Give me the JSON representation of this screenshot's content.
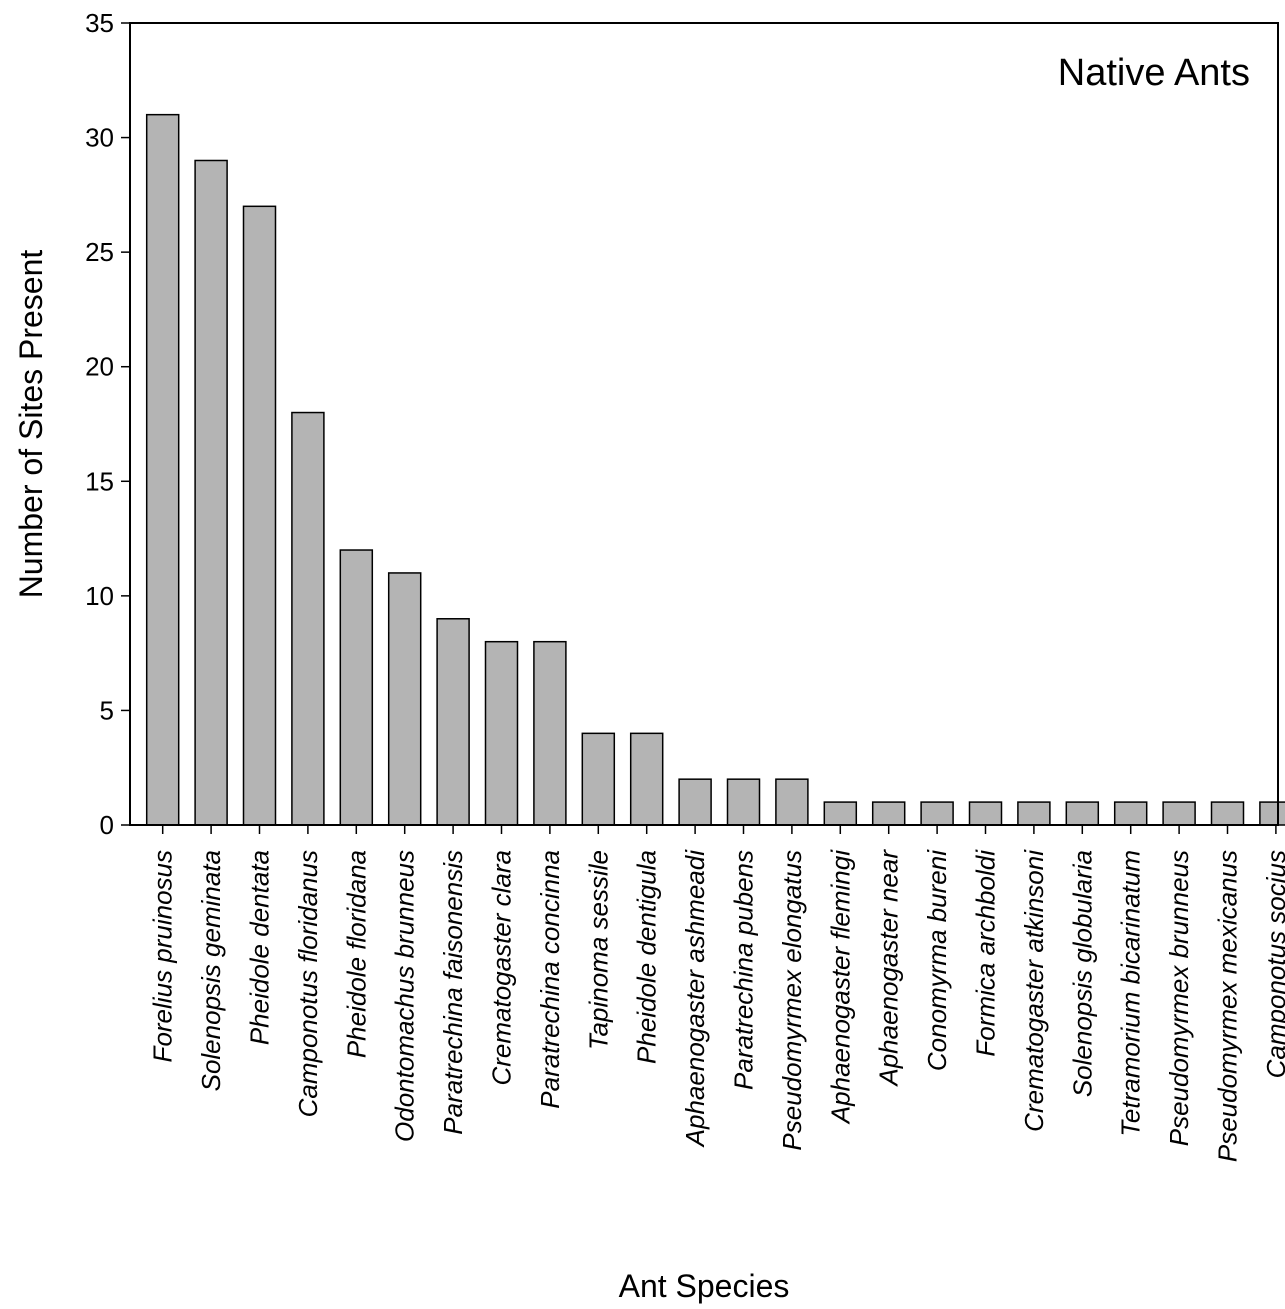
{
  "chart_data": {
    "type": "bar",
    "annotation": "Native Ants",
    "xlabel": "Ant Species",
    "ylabel": "Number of Sites Present",
    "ylim": [
      0,
      35
    ],
    "yticks": [
      0,
      5,
      10,
      15,
      20,
      25,
      30,
      35
    ],
    "grid": false,
    "categories": [
      "Forelius pruinosus",
      "Solenopsis geminata",
      "Pheidole dentata",
      "Camponotus floridanus",
      "Pheidole floridana",
      "Odontomachus brunneus",
      "Paratrechina faisonensis",
      "Crematogaster clara",
      "Paratrechina concinna",
      "Tapinoma sessile",
      "Pheidole dentigula",
      "Aphaenogaster ashmeadi",
      "Paratrechina pubens",
      "Pseudomyrmex elongatus",
      "Aphaenogaster flemingi",
      "Aphaenogaster near",
      "Conomyrma bureni",
      "Formica archboldi",
      "Crematogaster atkinsoni",
      "Solenopsis globularia",
      "Tetramorium bicarinatum",
      "Pseudomyrmex brunneus",
      "Pseudomyrmex mexicanus",
      "Camponotus socius"
    ],
    "values": [
      31,
      29,
      27,
      18,
      12,
      11,
      9,
      8,
      8,
      4,
      4,
      2,
      2,
      2,
      1,
      1,
      1,
      1,
      1,
      1,
      1,
      1,
      1,
      1
    ],
    "colors": {
      "bar_fill": "#b4b4b4",
      "bar_stroke": "#000000"
    }
  }
}
